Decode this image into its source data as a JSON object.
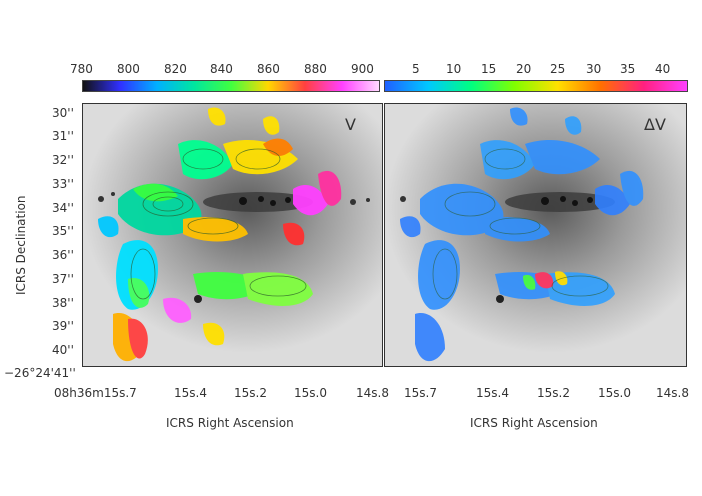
{
  "colorbar_left": {
    "ticks": [
      "780",
      "800",
      "820",
      "840",
      "860",
      "880",
      "900"
    ],
    "gradient": [
      "#111111",
      "#3030ff",
      "#00b0ff",
      "#00e6a0",
      "#40ff40",
      "#ffd800",
      "#ff4040",
      "#ff40ff",
      "#ffd8ff"
    ]
  },
  "colorbar_right": {
    "ticks": [
      "5",
      "10",
      "15",
      "20",
      "25",
      "30",
      "35",
      "40"
    ],
    "gradient": [
      "#2060ff",
      "#00c8ff",
      "#00ff80",
      "#80ff00",
      "#ffe000",
      "#ff7000",
      "#ff2080",
      "#ff40ff"
    ]
  },
  "panel_left": {
    "tag": "V"
  },
  "panel_right": {
    "tag": "ΔV"
  },
  "y_axis": {
    "title": "ICRS Declination",
    "ticks": [
      "30''",
      "31''",
      "32''",
      "33''",
      "34''",
      "35''",
      "36''",
      "37''",
      "38''",
      "39''",
      "40''",
      "−26°24'41''"
    ]
  },
  "x_axis_left": {
    "title": "ICRS Right Ascension",
    "ticks": [
      "08h36m15s.7",
      "15s.4",
      "15s.2",
      "15s.0",
      "14s.8"
    ]
  },
  "x_axis_right": {
    "title": "ICRS Right Ascension",
    "ticks": [
      "15s.7",
      "15s.4",
      "15s.2",
      "15s.0",
      "14s.8"
    ]
  }
}
